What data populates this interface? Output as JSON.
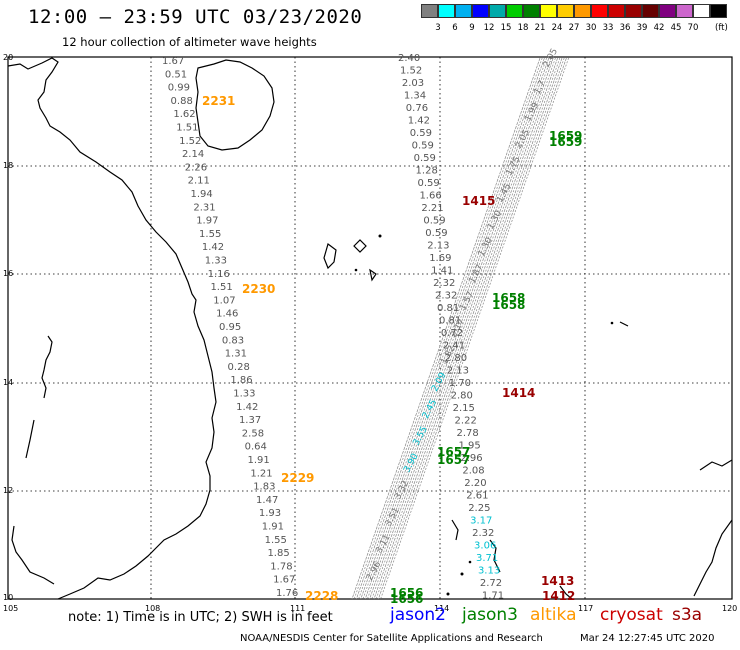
{
  "header": {
    "title": "12:00 – 23:59 UTC 03/23/2020",
    "subtitle": "12 hour collection of altimeter wave heights"
  },
  "color_scale": {
    "unit": "(ft)",
    "colors": [
      "#808080",
      "#00ffff",
      "#00b0f0",
      "#0000ff",
      "#00aaaa",
      "#00cc00",
      "#008000",
      "#ffff00",
      "#ffcc00",
      "#ff9900",
      "#ff0000",
      "#cc0000",
      "#990000",
      "#660000",
      "#800080",
      "#cc66cc",
      "#ffffff",
      "#000000"
    ],
    "labels": [
      "3",
      "6",
      "9",
      "12",
      "15",
      "18",
      "21",
      "24",
      "27",
      "30",
      "33",
      "36",
      "39",
      "42",
      "45",
      "70"
    ]
  },
  "map": {
    "lat_labels": [
      "20",
      "18",
      "16",
      "14",
      "12",
      "10"
    ],
    "lon_labels": [
      "105",
      "108",
      "111",
      "114",
      "117",
      "120"
    ],
    "passes": [
      {
        "label": "2231",
        "color": "#ff9900"
      },
      {
        "label": "2230",
        "color": "#ff9900"
      },
      {
        "label": "2229",
        "color": "#ff9900"
      },
      {
        "label": "2228",
        "color": "#ff9900"
      },
      {
        "label": "1415",
        "color": "#990000"
      },
      {
        "label": "1414",
        "color": "#990000"
      },
      {
        "label": "1413",
        "color": "#990000"
      },
      {
        "label": "1412",
        "color": "#990000"
      },
      {
        "label": "1659",
        "color": "#008000"
      },
      {
        "label": "1658",
        "color": "#008000"
      },
      {
        "label": "1657",
        "color": "#008000"
      },
      {
        "label": "1656",
        "color": "#008000"
      }
    ],
    "altika_swh": [
      "1.67",
      "0.51",
      "0.99",
      "0.88",
      "1.62",
      "1.51",
      "1.52",
      "2.14",
      "2.26",
      "2.11",
      "1.94",
      "2.31",
      "1.97",
      "1.55",
      "1.42",
      "1.33",
      "1.16",
      "1.51",
      "1.07",
      "1.46",
      "0.95",
      "0.83",
      "1.31",
      "0.28",
      "1.86",
      "1.33",
      "1.42",
      "1.37",
      "2.58",
      "0.64",
      "1.91",
      "1.21",
      "1.83",
      "1.47",
      "1.93",
      "1.91",
      "1.55",
      "1.85",
      "1.78",
      "1.67",
      "1.76"
    ],
    "s3a_swh": [
      "2.40",
      "1.52",
      "2.03",
      "1.34",
      "0.76",
      "1.42",
      "0.59",
      "0.59",
      "0.59",
      "1.28",
      "0.59",
      "1.66",
      "2.21",
      "0.59",
      "0.59",
      "2.13",
      "1.69",
      "1.41",
      "2.32",
      "2.32",
      "0.81",
      "0.81",
      "0.72",
      "2.41",
      "2.80",
      "2.13",
      "1.70",
      "2.80",
      "2.15",
      "2.22",
      "2.78",
      "1.95",
      "2.96",
      "2.08",
      "2.20",
      "2.61",
      "2.25",
      "3.17",
      "2.32",
      "3.06",
      "3.71",
      "3.13",
      "2.72",
      "1.71"
    ],
    "jason3_swh": [
      "2.05",
      "1.7",
      "1.99",
      "2.05",
      "1.75",
      "1.45",
      "1.30",
      "1.30",
      "1.87",
      "1.57",
      "2.17",
      "1.82",
      "2.09",
      "2.45",
      "3.55",
      "3.90",
      "3.32",
      "3.51",
      "3.11",
      "2.96"
    ]
  },
  "footer": {
    "note": "note:  1) Time is in UTC;  2) SWH is in feet",
    "satellites": [
      {
        "name": "jason2",
        "color": "#0000ff"
      },
      {
        "name": "jason3",
        "color": "#008000"
      },
      {
        "name": "altika",
        "color": "#ff9900"
      },
      {
        "name": "cryosat",
        "color": "#cc0000"
      },
      {
        "name": "s3a",
        "color": "#990000"
      }
    ],
    "credit": "NOAA/NESDIS Center for Satellite Applications and Research",
    "timestamp": "Mar 24 12:27:45 UTC 2020"
  }
}
